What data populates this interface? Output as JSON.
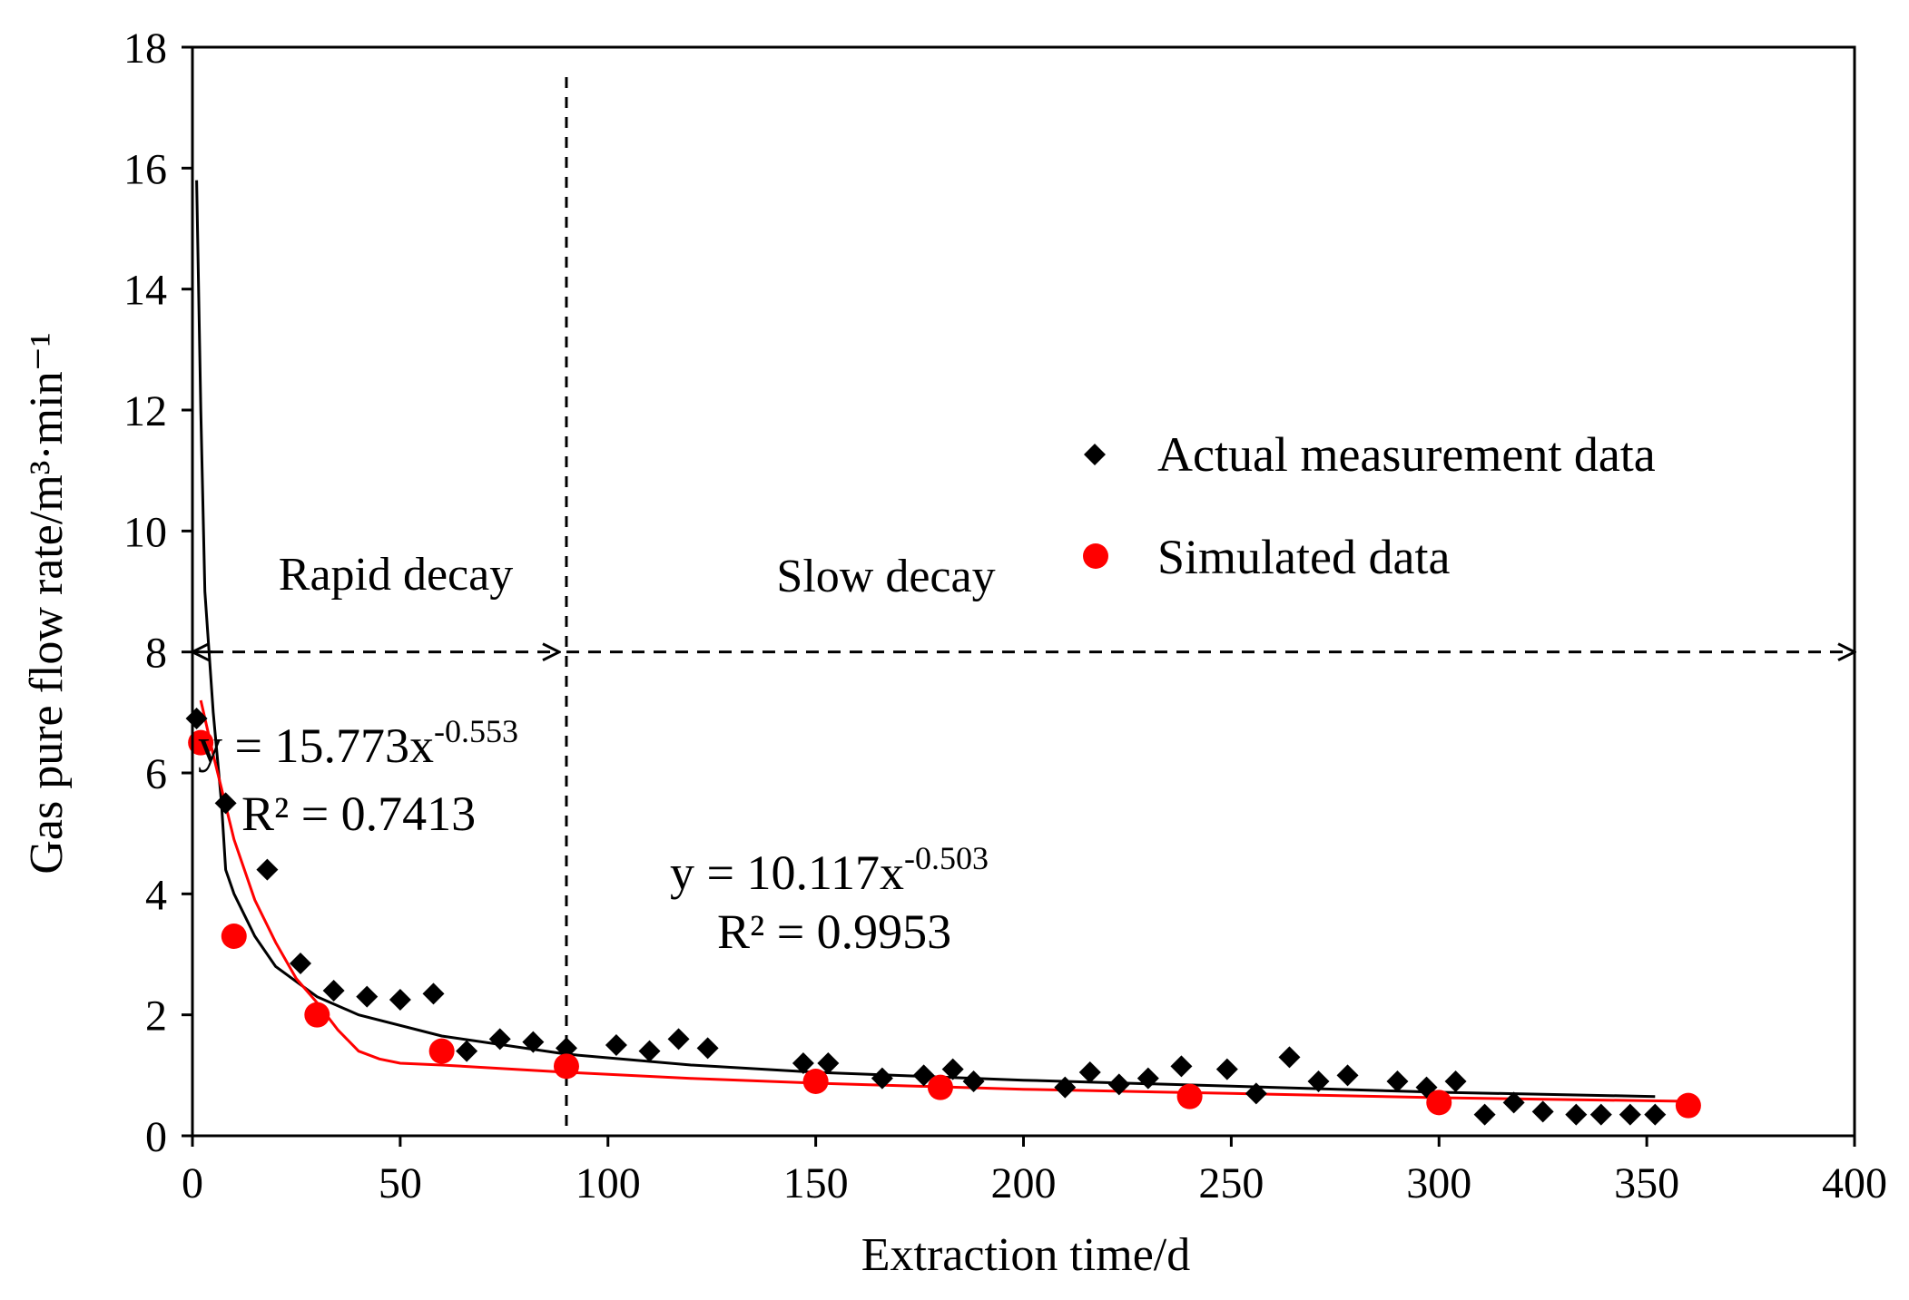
{
  "chart_data": {
    "type": "scatter",
    "xlabel": "Extraction time/d",
    "ylabel": "Gas pure flow rate/m³·min⁻¹",
    "xlim": [
      0,
      400
    ],
    "ylim": [
      0,
      18
    ],
    "xticks": [
      0,
      50,
      100,
      150,
      200,
      250,
      300,
      350,
      400
    ],
    "yticks": [
      0,
      2,
      4,
      6,
      8,
      10,
      12,
      14,
      16,
      18
    ],
    "grid": false,
    "legend": {
      "position": "center-right"
    },
    "series": [
      {
        "name": "Actual measurement data",
        "marker": "diamond",
        "color": "#000000",
        "x": [
          1,
          8,
          18,
          26,
          34,
          42,
          50,
          58,
          66,
          74,
          82,
          90,
          102,
          110,
          117,
          124,
          147,
          153,
          166,
          176,
          183,
          188,
          210,
          216,
          223,
          230,
          238,
          249,
          256,
          264,
          271,
          278,
          290,
          297,
          304,
          311,
          318,
          325,
          333,
          339,
          346,
          352
        ],
        "y": [
          6.9,
          5.5,
          4.4,
          2.85,
          2.4,
          2.3,
          2.25,
          2.35,
          1.4,
          1.6,
          1.55,
          1.45,
          1.5,
          1.4,
          1.6,
          1.45,
          1.2,
          1.2,
          0.95,
          1.0,
          1.1,
          0.9,
          0.8,
          1.05,
          0.85,
          0.95,
          1.15,
          1.1,
          0.7,
          1.3,
          0.9,
          1.0,
          0.9,
          0.8,
          0.9,
          0.35,
          0.55,
          0.4,
          0.35,
          0.35,
          0.35,
          0.35
        ]
      },
      {
        "name": "Simulated data",
        "marker": "circle",
        "color": "#ff0000",
        "x": [
          2,
          10,
          30,
          60,
          90,
          150,
          180,
          240,
          300,
          360
        ],
        "y": [
          6.5,
          3.3,
          2.0,
          1.4,
          1.15,
          0.9,
          0.8,
          0.65,
          0.55,
          0.5
        ]
      }
    ],
    "fits": [
      {
        "color": "#000000",
        "x": [
          1,
          2,
          3,
          5,
          7,
          8,
          10,
          15,
          20,
          30,
          40,
          60,
          90,
          120,
          150,
          200,
          250,
          300,
          352
        ],
        "y": [
          15.8,
          12,
          9,
          7,
          5.5,
          4.4,
          4.0,
          3.3,
          2.8,
          2.3,
          2.0,
          1.65,
          1.35,
          1.17,
          1.05,
          0.92,
          0.82,
          0.72,
          0.65
        ]
      },
      {
        "color": "#ff0000",
        "x": [
          2,
          5,
          10,
          15,
          20,
          25,
          30,
          35,
          40,
          45,
          50,
          60,
          90,
          120,
          150,
          200,
          250,
          300,
          360
        ],
        "y": [
          7.2,
          6.3,
          4.9,
          3.9,
          3.2,
          2.6,
          2.2,
          1.75,
          1.4,
          1.27,
          1.2,
          1.17,
          1.05,
          0.95,
          0.87,
          0.77,
          0.7,
          0.63,
          0.57
        ]
      }
    ],
    "divider": {
      "x": 90
    },
    "annotations": {
      "rapid": "Rapid decay",
      "slow": "Slow decay",
      "arrow_y": 8,
      "eq1": {
        "base": "y = 15.773x",
        "exp": "-0.553",
        "r2": "R² = 0.7413"
      },
      "eq2": {
        "base": "y = 10.117x",
        "exp": "-0.503",
        "r2": "R² = 0.9953"
      }
    }
  }
}
